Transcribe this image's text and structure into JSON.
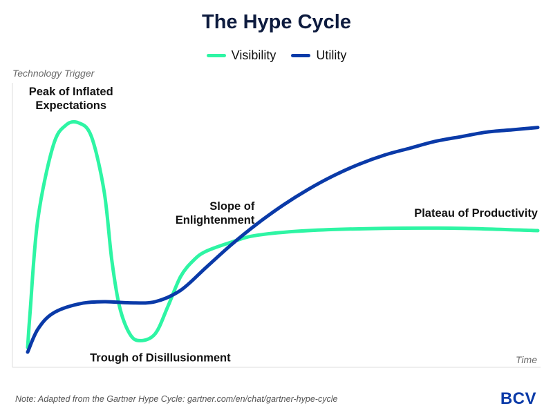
{
  "chart_data": {
    "type": "line",
    "title": "The Hype Cycle",
    "xlabel": "Time",
    "ylabel": "Technology Trigger",
    "xlim": [
      0,
      100
    ],
    "ylim": [
      0,
      100
    ],
    "grid": false,
    "legend_placement": "top-center",
    "series": [
      {
        "name": "Visibility",
        "color": "#2ef5a4",
        "x": [
          0,
          0.5,
          2,
          5,
          7.5,
          10,
          12.5,
          15,
          16.5,
          18,
          20,
          22,
          25,
          27.5,
          30,
          32.5,
          35,
          40,
          45,
          55,
          70,
          85,
          100
        ],
        "y": [
          2,
          18,
          58,
          90,
          99,
          100,
          94,
          70,
          40,
          20,
          8,
          5,
          8,
          20,
          33,
          40,
          44,
          48,
          51,
          53,
          54,
          54,
          53
        ]
      },
      {
        "name": "Utility",
        "color": "#0a3aa8",
        "x": [
          0,
          2,
          5,
          10,
          15,
          20,
          25,
          30,
          35,
          40,
          45,
          50,
          55,
          60,
          65,
          70,
          75,
          80,
          85,
          90,
          95,
          100
        ],
        "y": [
          0,
          10,
          17,
          21,
          22,
          21.5,
          22,
          27,
          37,
          47,
          56,
          64,
          71,
          77,
          82,
          86,
          89,
          92,
          94,
          96,
          97,
          98
        ]
      }
    ],
    "annotations": [
      {
        "lines": [
          "Peak of Inflated",
          "Expectations"
        ],
        "x": 8.5,
        "y": 112,
        "anchor": "middle"
      },
      {
        "lines": [
          "Trough of Disillusionment"
        ],
        "x": 26,
        "y": -4,
        "anchor": "middle"
      },
      {
        "lines": [
          "Slope of",
          "Enlightenment"
        ],
        "x": 44.5,
        "y": 62,
        "anchor": "end"
      },
      {
        "lines": [
          "Plateau of Productivity"
        ],
        "x": 100,
        "y": 59,
        "anchor": "end"
      }
    ]
  },
  "footer": {
    "note": "Note: Adapted from the Gartner Hype Cycle: gartner.com/en/chat/gartner-hype-cycle",
    "brand": "BCV"
  }
}
